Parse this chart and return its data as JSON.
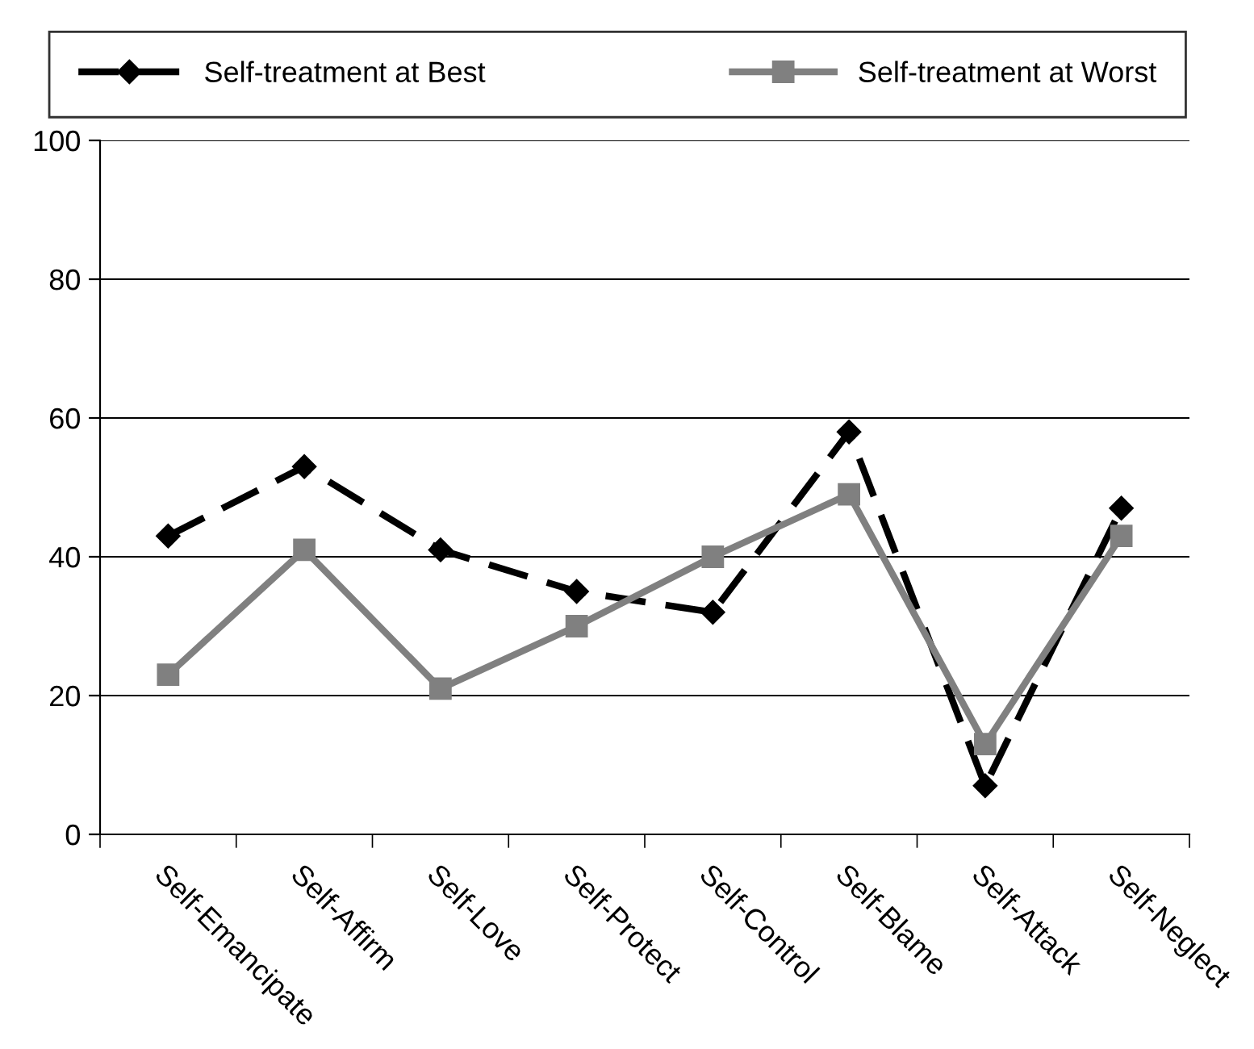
{
  "chart_data": {
    "type": "line",
    "categories": [
      "Self-Emancipate",
      "Self-Affirm",
      "Self-Love",
      "Self-Protect",
      "Self-Control",
      "Self-Blame",
      "Self-Attack",
      "Self-Neglect"
    ],
    "series": [
      {
        "name": "Self-treatment at Best",
        "color": "#000000",
        "marker": "diamond",
        "line_style": "dashed",
        "values": [
          43,
          53,
          41,
          35,
          32,
          58,
          7,
          47
        ]
      },
      {
        "name": "Self-treatment at Worst",
        "color": "#808080",
        "marker": "square",
        "line_style": "solid",
        "values": [
          23,
          41,
          21,
          30,
          40,
          49,
          13,
          43
        ]
      }
    ],
    "ylim": [
      0,
      100
    ],
    "yticks": [
      0,
      20,
      40,
      60,
      80,
      100
    ],
    "grid": "y",
    "legend": "top"
  }
}
